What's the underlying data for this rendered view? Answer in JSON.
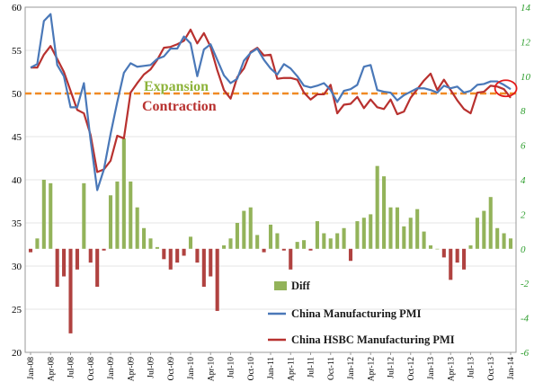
{
  "chart_data": {
    "type": "bar+line",
    "title": "",
    "categories": [
      "Jan-08",
      "Feb-08",
      "Mar-08",
      "Apr-08",
      "May-08",
      "Jun-08",
      "Jul-08",
      "Aug-08",
      "Sep-08",
      "Oct-08",
      "Nov-08",
      "Dec-08",
      "Jan-09",
      "Feb-09",
      "Mar-09",
      "Apr-09",
      "May-09",
      "Jun-09",
      "Jul-09",
      "Aug-09",
      "Sep-09",
      "Oct-09",
      "Nov-09",
      "Dec-09",
      "Jan-10",
      "Feb-10",
      "Mar-10",
      "Apr-10",
      "May-10",
      "Jun-10",
      "Jul-10",
      "Aug-10",
      "Sep-10",
      "Oct-10",
      "Nov-10",
      "Dec-10",
      "Jan-11",
      "Feb-11",
      "Mar-11",
      "Apr-11",
      "May-11",
      "Jun-11",
      "Jul-11",
      "Aug-11",
      "Sep-11",
      "Oct-11",
      "Nov-11",
      "Dec-11",
      "Jan-12",
      "Feb-12",
      "Mar-12",
      "Apr-12",
      "May-12",
      "Jun-12",
      "Jul-12",
      "Aug-12",
      "Sep-12",
      "Oct-12",
      "Nov-12",
      "Dec-12",
      "Jan-13",
      "Feb-13",
      "Mar-13",
      "Apr-13",
      "May-13",
      "Jun-13",
      "Jul-13",
      "Aug-13",
      "Sep-13",
      "Oct-13",
      "Nov-13",
      "Dec-13",
      "Jan-14"
    ],
    "x_tick_labels": [
      "Jan-08",
      "Apr-08",
      "Jul-08",
      "Oct-08",
      "Jan-09",
      "Apr-09",
      "Jul-09",
      "Oct-09",
      "Jan-10",
      "Apr-10",
      "Jul-10",
      "Oct-10",
      "Jan-11",
      "Apr-11",
      "Jul-11",
      "Oct-11",
      "Jan-12",
      "Apr-12",
      "Jul-12",
      "Oct-12",
      "Jan-13",
      "Apr-13",
      "Jul-13",
      "Oct-13",
      "Jan-14"
    ],
    "y_left": {
      "ylim": [
        20,
        60
      ],
      "ticks": [
        20,
        25,
        30,
        35,
        40,
        45,
        50,
        55,
        60
      ]
    },
    "y_right": {
      "ylim": [
        -6,
        14
      ],
      "ticks": [
        -6,
        -4,
        -2,
        0,
        2,
        4,
        6,
        8,
        10,
        12,
        14
      ]
    },
    "reference_line": {
      "value": 50,
      "axis": "left",
      "style": "dashed",
      "color": "#f08a24"
    },
    "annotations": [
      {
        "text": "Expansion",
        "color": "#8db33a"
      },
      {
        "text": "Contraction",
        "color": "#b8312f"
      }
    ],
    "highlight": {
      "shape": "ellipse",
      "color": "#e21b1b",
      "category": "Dec-13"
    },
    "series": [
      {
        "name": "Diff",
        "axis": "right",
        "style": "bar",
        "color_positive": "#93b35a",
        "color_negative": "#b04240",
        "values": [
          -0.2,
          0.6,
          4.0,
          3.8,
          -2.2,
          -1.6,
          -4.9,
          -1.2,
          3.8,
          -0.8,
          -2.2,
          -0.1,
          3.1,
          3.9,
          6.4,
          3.9,
          2.4,
          1.2,
          0.6,
          0.1,
          -0.6,
          -1.2,
          -0.8,
          -0.4,
          0.7,
          -0.8,
          -2.2,
          -1.6,
          -3.6,
          0.2,
          0.6,
          1.5,
          2.2,
          2.4,
          0.8,
          -0.2,
          1.4,
          0.9,
          -0.1,
          -1.2,
          0.4,
          0.5,
          -0.1,
          1.6,
          0.9,
          0.6,
          0.9,
          1.2,
          -0.7,
          1.6,
          1.8,
          2.0,
          4.8,
          4.2,
          2.4,
          2.4,
          1.3,
          1.8,
          2.3,
          1.0,
          0.2,
          0.0,
          -0.5,
          -1.8,
          -0.8,
          -1.2,
          0.2,
          1.8,
          2.2,
          3.0,
          1.2,
          0.9,
          0.6
        ]
      },
      {
        "name": "China Manufacturing PMI",
        "axis": "left",
        "style": "line",
        "color": "#4a78b8",
        "values": [
          53.0,
          53.4,
          58.4,
          59.2,
          53.3,
          52.0,
          48.4,
          48.4,
          51.2,
          44.6,
          38.8,
          41.2,
          45.3,
          49.0,
          52.4,
          53.5,
          53.1,
          53.2,
          53.3,
          54.0,
          54.3,
          55.2,
          55.2,
          56.6,
          55.8,
          52.0,
          55.1,
          55.7,
          53.9,
          52.1,
          51.2,
          51.7,
          53.8,
          54.7,
          55.2,
          53.9,
          52.9,
          52.2,
          53.4,
          52.9,
          52.0,
          50.9,
          50.7,
          50.9,
          51.2,
          50.4,
          49.0,
          50.3,
          50.5,
          51.0,
          53.1,
          53.3,
          50.4,
          50.2,
          50.1,
          49.2,
          49.8,
          50.2,
          50.6,
          50.6,
          50.4,
          50.1,
          50.9,
          50.6,
          50.8,
          50.1,
          50.3,
          51.0,
          51.1,
          51.4,
          51.4,
          51.0,
          50.5
        ]
      },
      {
        "name": "China HSBC Manufacturing PMI",
        "axis": "left",
        "style": "line",
        "color": "#b8312f",
        "values": [
          53.0,
          53.0,
          54.5,
          55.5,
          54.0,
          52.5,
          50.3,
          48.1,
          47.7,
          45.2,
          40.9,
          41.2,
          42.2,
          45.1,
          44.8,
          50.1,
          51.2,
          52.2,
          52.8,
          53.9,
          55.3,
          55.4,
          55.7,
          56.1,
          57.4,
          55.8,
          57.0,
          55.4,
          52.7,
          50.4,
          49.4,
          51.9,
          52.9,
          54.8,
          55.3,
          54.4,
          54.5,
          51.7,
          51.8,
          51.8,
          51.6,
          50.1,
          49.3,
          49.9,
          49.9,
          51.0,
          47.7,
          48.7,
          48.8,
          49.6,
          48.3,
          49.3,
          48.4,
          48.2,
          49.3,
          47.6,
          47.9,
          49.5,
          50.5,
          51.5,
          52.3,
          50.4,
          51.6,
          50.4,
          49.2,
          48.2,
          47.7,
          50.1,
          50.2,
          50.9,
          50.8,
          50.5,
          49.5
        ]
      }
    ]
  }
}
